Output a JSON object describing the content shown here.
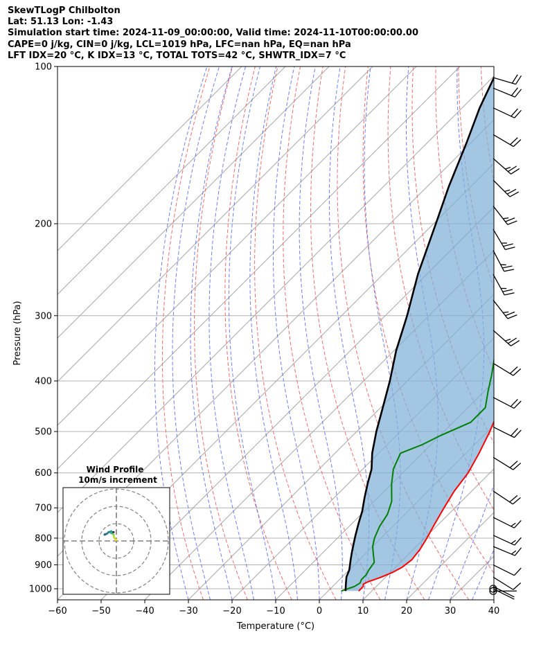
{
  "header": {
    "line1": "SkewTLogP Chilbolton",
    "line2": "Lat: 51.13   Lon: -1.43",
    "line3": "Simulation start time: 2024-11-09_00:00:00, Valid time: 2024-11-10T00:00:00.00",
    "line4": "CAPE=0 j/kg, CIN=0 j/kg, LCL=1019 hPa, LFC=nan hPa, EQ=nan hPa",
    "line5": "LFT IDX=20 °C, K IDX=13 °C, TOTAL TOTS=42 °C, SHWTR_IDX=7 °C"
  },
  "chart_data": {
    "type": "line",
    "title": "SkewTLogP Chilbolton",
    "xlabel": "Temperature (°C)",
    "ylabel": "Pressure (hPa)",
    "xlim": [
      -60,
      40
    ],
    "ylim": [
      1050,
      100
    ],
    "y_scale": "log",
    "x_ticks": [
      "−60",
      "−50",
      "−40",
      "−30",
      "−20",
      "−10",
      "0",
      "10",
      "20",
      "30",
      "40"
    ],
    "y_ticks": [
      "100",
      "200",
      "300",
      "400",
      "500",
      "600",
      "700",
      "800",
      "900",
      "1000"
    ],
    "grid": true,
    "series": [
      {
        "role": "temperature",
        "color": "#ff0000",
        "points": [
          [
            7,
            1010
          ],
          [
            7,
            1000
          ],
          [
            7,
            990
          ],
          [
            6.5,
            980
          ],
          [
            7,
            970
          ],
          [
            8,
            960
          ],
          [
            9,
            950
          ],
          [
            10.5,
            930
          ],
          [
            11.5,
            910
          ],
          [
            12,
            880
          ],
          [
            11.5,
            840
          ],
          [
            10.5,
            800
          ],
          [
            9,
            750
          ],
          [
            7.5,
            700
          ],
          [
            6,
            650
          ],
          [
            5,
            600
          ],
          [
            3,
            550
          ],
          [
            0.5,
            500
          ],
          [
            -2,
            460
          ],
          [
            -4.5,
            420
          ],
          [
            -7,
            390
          ],
          [
            -9.5,
            360
          ],
          [
            -11,
            340
          ],
          [
            -12.5,
            320
          ],
          [
            -14.5,
            300
          ],
          [
            -16.5,
            280
          ],
          [
            -18,
            260
          ],
          [
            -19.5,
            245
          ],
          [
            -21,
            225
          ],
          [
            -20,
            210
          ],
          [
            -19,
            200
          ],
          [
            -18,
            190
          ],
          [
            -17,
            180
          ],
          [
            -15,
            170
          ],
          [
            -13.5,
            160
          ],
          [
            -12.5,
            150
          ],
          [
            -12,
            140
          ],
          [
            -11,
            130
          ],
          [
            -10.5,
            125
          ],
          [
            -10,
            120
          ],
          [
            -9.5,
            115
          ],
          [
            -9,
            110
          ],
          [
            -8.5,
            105
          ],
          [
            -8,
            100
          ]
        ]
      },
      {
        "role": "dewpoint",
        "color": "#008000",
        "points": [
          [
            3,
            1010
          ],
          [
            4,
            1000
          ],
          [
            5,
            990
          ],
          [
            5.5,
            975
          ],
          [
            5,
            960
          ],
          [
            5,
            940
          ],
          [
            4.5,
            920
          ],
          [
            4,
            890
          ],
          [
            2,
            860
          ],
          [
            0,
            830
          ],
          [
            -1.5,
            800
          ],
          [
            -3,
            760
          ],
          [
            -4,
            720
          ],
          [
            -6,
            680
          ],
          [
            -10,
            630
          ],
          [
            -13,
            590
          ],
          [
            -15,
            550
          ],
          [
            -12,
            530
          ],
          [
            -10,
            510
          ],
          [
            -6,
            480
          ],
          [
            -6,
            450
          ],
          [
            -9,
            420
          ],
          [
            -12,
            390
          ],
          [
            -15.5,
            360
          ],
          [
            -18.5,
            340
          ],
          [
            -20,
            320
          ],
          [
            -21,
            300
          ],
          [
            -22,
            280
          ],
          [
            -23,
            260
          ],
          [
            -24.5,
            240
          ],
          [
            -25.5,
            220
          ],
          [
            -25,
            200
          ],
          [
            -27,
            190
          ],
          [
            -31,
            180
          ],
          [
            -34,
            170
          ],
          [
            -36,
            160
          ],
          [
            -37,
            150
          ],
          [
            -36.5,
            140
          ],
          [
            -35,
            130
          ],
          [
            -34,
            120
          ],
          [
            -33,
            110
          ],
          [
            -32,
            100
          ]
        ]
      },
      {
        "role": "parcel",
        "color": "#000000",
        "points": [
          [
            4,
            1010
          ],
          [
            3.5,
            1000
          ],
          [
            2.5,
            980
          ],
          [
            1,
            950
          ],
          [
            0,
            920
          ],
          [
            -2,
            880
          ],
          [
            -3.5,
            850
          ],
          [
            -5,
            820
          ],
          [
            -6.5,
            790
          ],
          [
            -8.5,
            750
          ],
          [
            -10.5,
            710
          ],
          [
            -13,
            670
          ],
          [
            -15.5,
            630
          ],
          [
            -18,
            590
          ],
          [
            -21.5,
            550
          ],
          [
            -25.5,
            500
          ],
          [
            -29.5,
            450
          ],
          [
            -34,
            400
          ],
          [
            -39.5,
            350
          ],
          [
            -45,
            300
          ],
          [
            -52,
            250
          ],
          [
            -59.5,
            200
          ],
          [
            -65,
            170
          ],
          [
            -71,
            140
          ],
          [
            -76,
            120
          ],
          [
            -81,
            100
          ]
        ]
      }
    ],
    "wind_barbs": [
      {
        "p": 1010,
        "u": -2,
        "v": 0
      },
      {
        "p": 1000,
        "u": -2,
        "v": 1
      },
      {
        "p": 990,
        "u": -2,
        "v": 1
      },
      {
        "p": 950,
        "u": -8,
        "v": 5
      },
      {
        "p": 900,
        "u": -10,
        "v": 5
      },
      {
        "p": 830,
        "u": -12,
        "v": 5
      },
      {
        "p": 790,
        "u": -13,
        "v": 6
      },
      {
        "p": 730,
        "u": -14,
        "v": 7
      },
      {
        "p": 650,
        "u": -15,
        "v": 10
      },
      {
        "p": 560,
        "u": -16,
        "v": 10
      },
      {
        "p": 490,
        "u": -18,
        "v": 9
      },
      {
        "p": 430,
        "u": -19,
        "v": 10
      },
      {
        "p": 370,
        "u": -18,
        "v": 11
      },
      {
        "p": 320,
        "u": -17,
        "v": 15
      },
      {
        "p": 280,
        "u": -14,
        "v": 18
      },
      {
        "p": 250,
        "u": -12,
        "v": 22
      },
      {
        "p": 225,
        "u": -12,
        "v": 23
      },
      {
        "p": 205,
        "u": -13,
        "v": 22
      },
      {
        "p": 185,
        "u": -14,
        "v": 18
      },
      {
        "p": 165,
        "u": -16,
        "v": 16
      },
      {
        "p": 150,
        "u": -17,
        "v": 15
      },
      {
        "p": 135,
        "u": -17,
        "v": 10
      },
      {
        "p": 120,
        "u": -17,
        "v": 8
      },
      {
        "p": 110,
        "u": -17,
        "v": 7
      },
      {
        "p": 105,
        "u": -17,
        "v": 5
      }
    ],
    "hodograph": {
      "title": "Wind Profile",
      "subtitle": "10m/s increment",
      "rings": 3
    }
  }
}
